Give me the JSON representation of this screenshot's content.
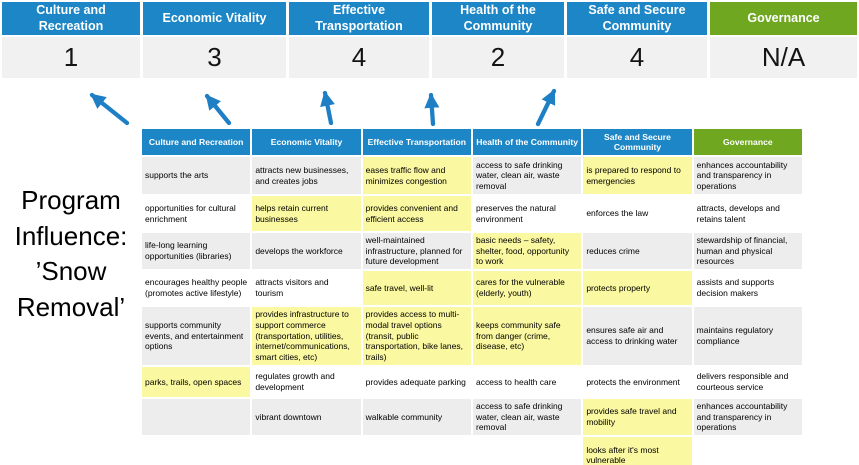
{
  "colors": {
    "accent_blue": "#1C86C6",
    "accent_green": "#6FA720",
    "highlight_yellow": "#FAF8A0",
    "band_gray": "#EDEDED",
    "score_row_gray": "#F1F1F1"
  },
  "pillars": [
    {
      "label": "Culture and Recreation",
      "score": "1"
    },
    {
      "label": "Economic Vitality",
      "score": "3"
    },
    {
      "label": "Effective Transportation",
      "score": "4"
    },
    {
      "label": "Health of the Community",
      "score": "2"
    },
    {
      "label": "Safe and Secure Community",
      "score": "4"
    },
    {
      "label": "Governance",
      "score": "N/A"
    }
  ],
  "program": {
    "label": "Program Influence: ’Snow Removal’"
  },
  "matrix": {
    "headers": [
      "Culture and Recreation",
      "Economic Vitality",
      "Effective Transportation",
      "Health of the Community",
      "Safe and Secure Community",
      "Governance"
    ],
    "rows": [
      [
        {
          "t": "supports the arts",
          "y": false
        },
        {
          "t": "attracts new businesses, and creates jobs",
          "y": false
        },
        {
          "t": "eases traffic flow and minimizes congestion",
          "y": true
        },
        {
          "t": "access to safe drinking water, clean air, waste removal",
          "y": false
        },
        {
          "t": "is prepared to respond to emergencies",
          "y": true
        },
        {
          "t": "enhances accountability and transparency in operations",
          "y": false
        }
      ],
      [
        {
          "t": "opportunities for cultural enrichment",
          "y": false
        },
        {
          "t": "helps retain current businesses",
          "y": true
        },
        {
          "t": "provides convenient and efficient access",
          "y": true
        },
        {
          "t": "preserves the natural environment",
          "y": false
        },
        {
          "t": "enforces the law",
          "y": false
        },
        {
          "t": "attracts, develops and retains talent",
          "y": false
        }
      ],
      [
        {
          "t": "life-long learning opportunities (libraries)",
          "y": false
        },
        {
          "t": "develops the workforce",
          "y": false
        },
        {
          "t": "well-maintained infrastructure, planned for future development",
          "y": false
        },
        {
          "t": "basic needs – safety, shelter, food, opportunity to work",
          "y": true
        },
        {
          "t": "reduces crime",
          "y": false
        },
        {
          "t": "stewardship of financial, human and physical resources",
          "y": false
        }
      ],
      [
        {
          "t": "encourages healthy people (promotes active lifestyle)",
          "y": false
        },
        {
          "t": "attracts visitors and tourism",
          "y": false
        },
        {
          "t": "safe travel, well-lit",
          "y": true
        },
        {
          "t": "cares for the vulnerable (elderly, youth)",
          "y": true
        },
        {
          "t": "protects property",
          "y": true
        },
        {
          "t": "assists and supports decision makers",
          "y": false
        }
      ],
      [
        {
          "t": "supports community events, and entertainment options",
          "y": false
        },
        {
          "t": "provides infrastructure to support commerce (transportation, utilities, internet/communications, smart cities, etc)",
          "y": true
        },
        {
          "t": "provides access to multi-modal travel options (transit, public transportation, bike lanes, trails)",
          "y": true
        },
        {
          "t": "keeps community safe from danger (crime, disease, etc)",
          "y": true
        },
        {
          "t": "ensures safe air and access to drinking water",
          "y": false
        },
        {
          "t": "maintains regulatory compliance",
          "y": false
        }
      ],
      [
        {
          "t": "parks, trails, open spaces",
          "y": true
        },
        {
          "t": "regulates growth and development",
          "y": false
        },
        {
          "t": "provides adequate parking",
          "y": false
        },
        {
          "t": "access to health care",
          "y": false
        },
        {
          "t": "protects the environment",
          "y": false
        },
        {
          "t": "delivers responsible and courteous service",
          "y": false
        }
      ],
      [
        {
          "t": "",
          "y": false
        },
        {
          "t": "vibrant downtown",
          "y": false
        },
        {
          "t": "walkable community",
          "y": false
        },
        {
          "t": "access to safe drinking water, clean air, waste removal",
          "y": false
        },
        {
          "t": "provides safe travel and mobility",
          "y": true
        },
        {
          "t": "enhances accountability and transparency in operations",
          "y": false
        }
      ],
      [
        {
          "t": "",
          "y": false
        },
        {
          "t": "",
          "y": false
        },
        {
          "t": "",
          "y": false
        },
        {
          "t": "",
          "y": false
        },
        {
          "t": "looks after it's most vulnerable",
          "y": true
        },
        {
          "t": "",
          "y": false
        }
      ]
    ]
  }
}
